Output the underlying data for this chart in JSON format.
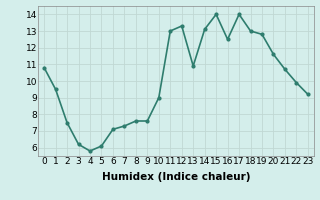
{
  "x": [
    0,
    1,
    2,
    3,
    4,
    5,
    6,
    7,
    8,
    9,
    10,
    11,
    12,
    13,
    14,
    15,
    16,
    17,
    18,
    19,
    20,
    21,
    22,
    23
  ],
  "y": [
    10.8,
    9.5,
    7.5,
    6.2,
    5.8,
    6.1,
    7.1,
    7.3,
    7.6,
    7.6,
    9.0,
    13.0,
    13.3,
    10.9,
    13.1,
    14.0,
    12.5,
    14.0,
    13.0,
    12.8,
    11.6,
    10.7,
    9.9,
    9.2
  ],
  "line_color": "#2e7d6e",
  "marker": "o",
  "marker_size": 2,
  "bg_color": "#d4eeeb",
  "grid_color": "#c0d8d4",
  "xlabel": "Humidex (Indice chaleur)",
  "xlabel_fontsize": 7.5,
  "ylabel_ticks": [
    6,
    7,
    8,
    9,
    10,
    11,
    12,
    13,
    14
  ],
  "xlim": [
    -0.5,
    23.5
  ],
  "ylim": [
    5.5,
    14.5
  ],
  "tick_fontsize": 6.5,
  "linewidth": 1.2
}
